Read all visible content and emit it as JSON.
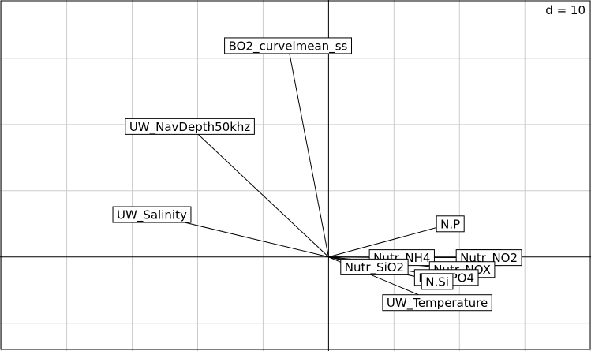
{
  "chart_data": {
    "type": "biplot",
    "scale_label": "d = 10",
    "grid_step": 10,
    "x_range": [
      -50.2,
      40.1
    ],
    "y_range": [
      -14.2,
      38.8
    ],
    "axes_origin": [
      0,
      0
    ],
    "arrows": [
      {
        "name": "BO2_curvelmean_ss",
        "x": -6.2,
        "y": 31.9
      },
      {
        "name": "UW_NavDepth50khz",
        "x": -21.2,
        "y": 19.7
      },
      {
        "name": "UW_Salinity",
        "x": -27.0,
        "y": 6.4
      },
      {
        "name": "N.P",
        "x": 18.6,
        "y": 5.0
      },
      {
        "name": "Nutr_NH4",
        "x": 11.2,
        "y": -0.1
      },
      {
        "name": "N.P.Si",
        "x": 23.3,
        "y": -0.1
      },
      {
        "name": "Nutr_NO2",
        "x": 24.5,
        "y": -0.1
      },
      {
        "name": "Nutr_SiO2",
        "x": 7.0,
        "y": -1.5
      },
      {
        "name": "Nutr_NOX",
        "x": 20.4,
        "y": -1.9
      },
      {
        "name": "Nutr_PO4",
        "x": 18.0,
        "y": -3.1
      },
      {
        "name": "N.Si",
        "x": 16.6,
        "y": -3.7
      },
      {
        "name": "UW_Temperature",
        "x": 16.6,
        "y": -6.9
      }
    ]
  }
}
